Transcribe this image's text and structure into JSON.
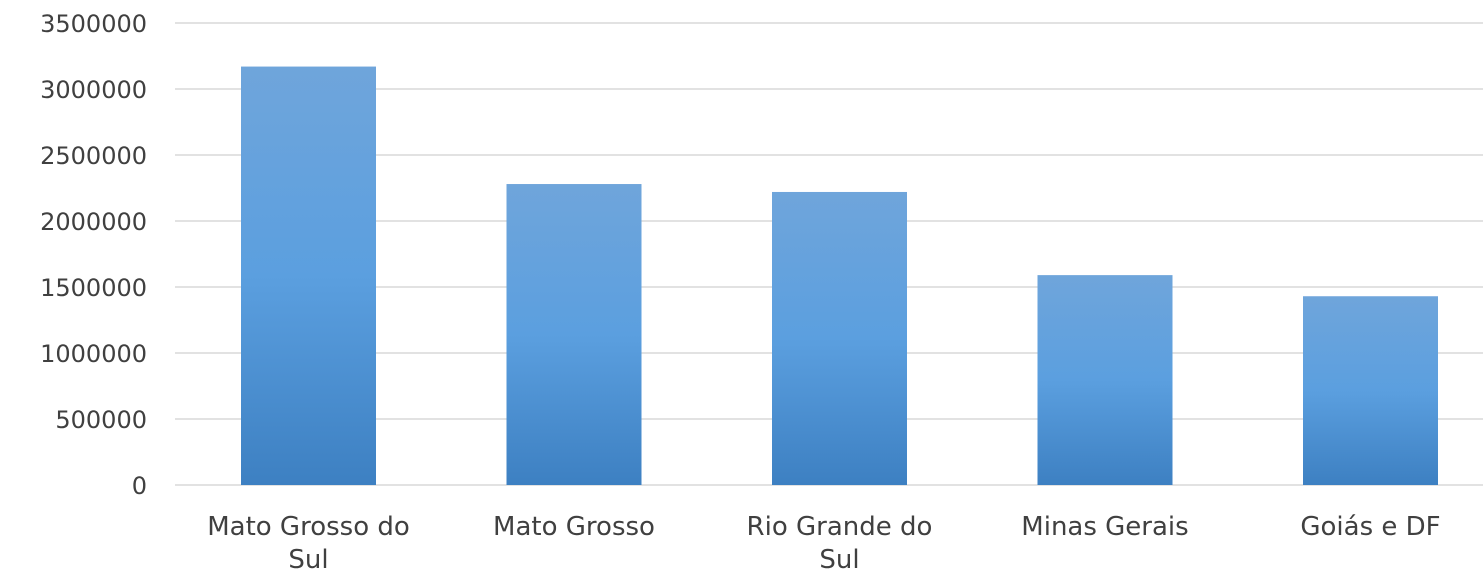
{
  "chart_data": {
    "type": "bar",
    "categories": [
      [
        "Mato Grosso do",
        "Sul"
      ],
      [
        "Mato Grosso"
      ],
      [
        "Rio Grande do",
        "Sul"
      ],
      [
        "Minas Gerais"
      ],
      [
        "Goiás e DF"
      ]
    ],
    "values": [
      3170000,
      2280000,
      2220000,
      1590000,
      1430000
    ],
    "ylim": [
      0,
      3500000
    ],
    "yticks": [
      0,
      500000,
      1000000,
      1500000,
      2000000,
      2500000,
      3000000,
      3500000
    ],
    "ytick_labels": [
      "0",
      "500000",
      "1000000",
      "1500000",
      "2000000",
      "2500000",
      "3000000",
      "3500000"
    ],
    "grid": true,
    "legend": "none",
    "colors": {
      "bar_top": "#6fa5db",
      "bar_mid": "#5b9fdf",
      "bar_bottom": "#3d80c2",
      "grid": "#d9d9d9",
      "text": "#404040"
    }
  }
}
